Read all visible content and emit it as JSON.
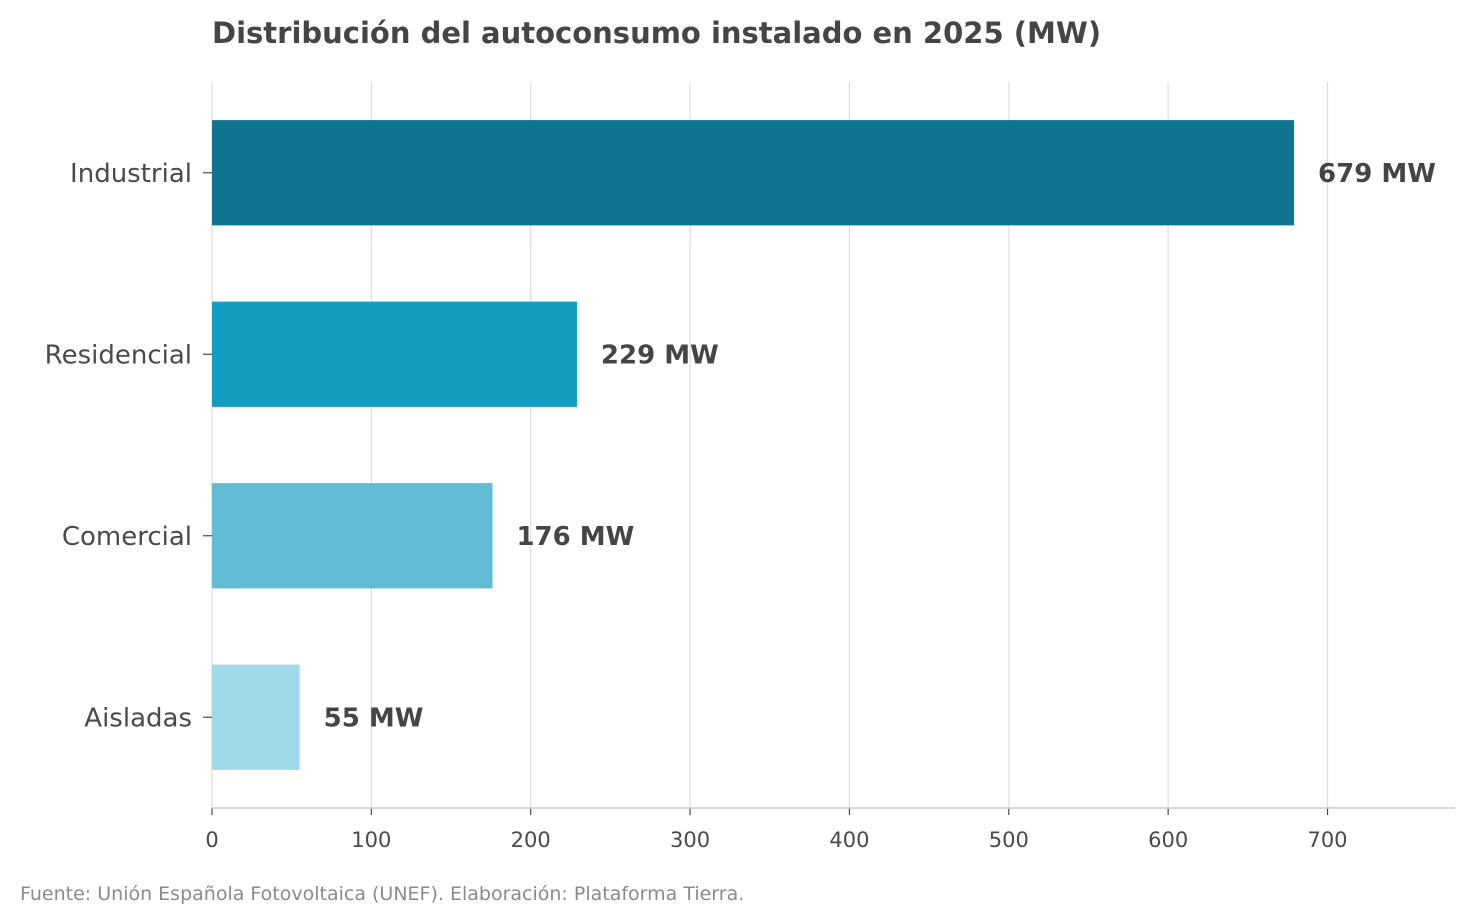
{
  "chart_data": {
    "type": "bar",
    "orientation": "horizontal",
    "title": "Distribución del autoconsumo instalado en 2025 (MW)",
    "categories": [
      "Industrial",
      "Residencial",
      "Comercial",
      "Aisladas"
    ],
    "values": [
      679,
      229,
      176,
      55
    ],
    "data_labels": [
      "679 MW",
      "229 MW",
      "176 MW",
      "55 MW"
    ],
    "colors": [
      "#0e7490",
      "#119ec1",
      "#61bbd3",
      "#a1d9ea"
    ],
    "x_ticks": [
      0,
      100,
      200,
      300,
      400,
      500,
      600,
      700
    ],
    "xlim": [
      0,
      780
    ],
    "grid": "vertical",
    "source": "Fuente: Unión Española Fotovoltaica (UNEF). Elaboración: Plataforma Tierra."
  }
}
